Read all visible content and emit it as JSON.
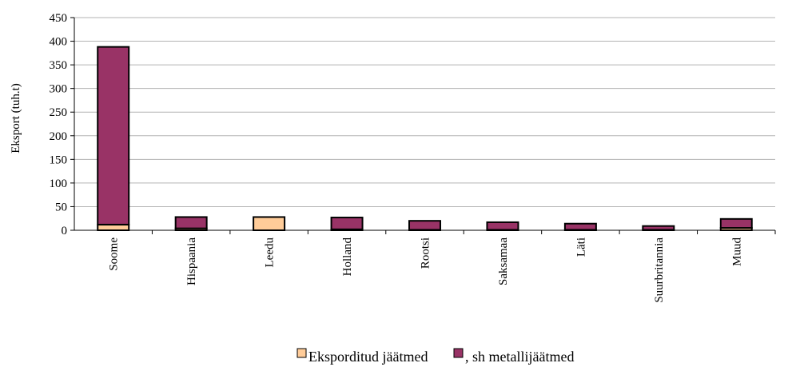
{
  "chart_data": {
    "type": "bar",
    "stacked": true,
    "ylabel": "Eksport (tuh.t)",
    "xlabel": "",
    "ylim": [
      0,
      450
    ],
    "yticks": [
      0,
      50,
      100,
      150,
      200,
      250,
      300,
      350,
      400,
      450
    ],
    "grid": true,
    "legend_position": "bottom",
    "categories": [
      "Soome",
      "Hispaania",
      "Leedu",
      "Holland",
      "Rootsi",
      "Saksamaa",
      "Läti",
      "Suurbritannia",
      "Muud"
    ],
    "series": [
      {
        "name": "Eksporditud jäätmed",
        "color": "#FFCC99",
        "values": [
          12,
          4,
          28,
          2,
          1,
          1,
          1,
          1,
          5
        ]
      },
      {
        "name": ", sh metallijäätmed",
        "color": "#993366",
        "values": [
          376,
          24,
          0,
          25,
          19,
          16,
          13,
          8,
          19
        ]
      }
    ]
  }
}
